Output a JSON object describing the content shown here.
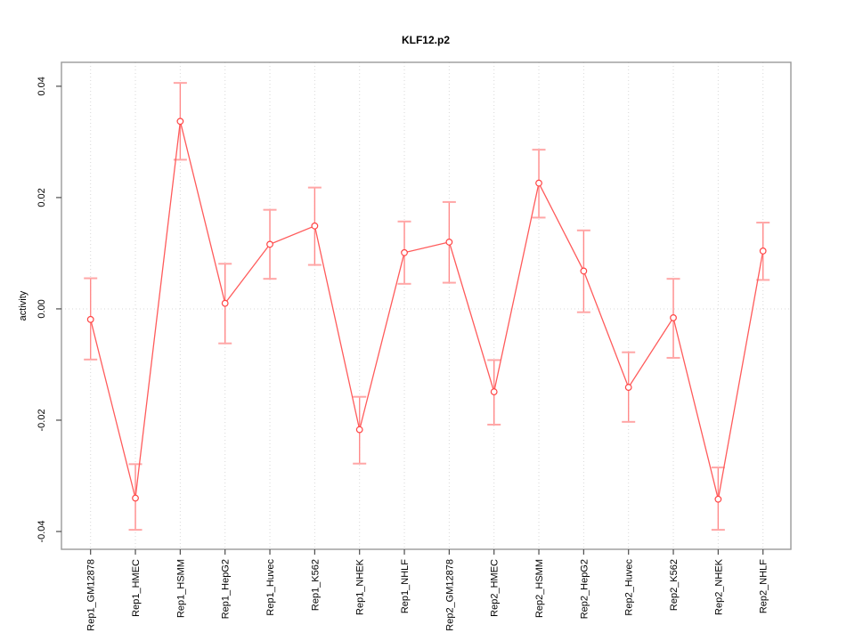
{
  "title": "KLF12.p2",
  "chart_data": {
    "type": "line",
    "title": "KLF12.p2",
    "xlabel": "",
    "ylabel": "activity",
    "categories": [
      "Rep1_GM12878",
      "Rep1_HMEC",
      "Rep1_HSMM",
      "Rep1_HepG2",
      "Rep1_Huvec",
      "Rep1_K562",
      "Rep1_NHEK",
      "Rep1_NHLF",
      "Rep2_GM12878",
      "Rep2_HMEC",
      "Rep2_HSMM",
      "Rep2_HepG2",
      "Rep2_Huvec",
      "Rep2_K562",
      "Rep2_NHEK",
      "Rep2_NHLF"
    ],
    "series": [
      {
        "name": "activity",
        "values": [
          -0.0019,
          -0.034,
          0.0337,
          0.001,
          0.0116,
          0.0149,
          -0.0217,
          0.0101,
          0.012,
          -0.0149,
          0.0226,
          0.0068,
          -0.0141,
          -0.0016,
          -0.0342,
          0.0104
        ],
        "lower": [
          -0.0091,
          -0.0397,
          0.0268,
          -0.0062,
          0.0054,
          0.0079,
          -0.0278,
          0.0045,
          0.0047,
          -0.0208,
          0.0164,
          -0.0006,
          -0.0203,
          -0.0088,
          -0.0397,
          0.0052
        ],
        "upper": [
          0.0055,
          -0.0279,
          0.0406,
          0.0081,
          0.0178,
          0.0218,
          -0.0158,
          0.0157,
          0.0192,
          -0.0092,
          0.0286,
          0.0141,
          -0.0078,
          0.0054,
          -0.0285,
          0.0155
        ]
      }
    ],
    "ylim": [
      -0.0432,
      0.0443
    ],
    "yticks": [
      -0.04,
      -0.02,
      0,
      0.02,
      0.04
    ],
    "ytick_labels": [
      "-0.04",
      "-0.02",
      "0.00",
      "0.02",
      "0.04"
    ],
    "grid": {
      "vertical_per_category": true,
      "horizontal_at_zero": true,
      "style": "dotted"
    },
    "legend_position": "none",
    "colors": {
      "line": "#ff5b5b",
      "point_stroke": "#ff4545",
      "point_fill": "#ffffff",
      "error_bar": "#ff8a8a",
      "error_cap": "#ffa6a6",
      "gridline": "#d8d8d8",
      "box": "#9a9a9a",
      "tick": "#4d4d4d",
      "text": "#000000",
      "background": "#ffffff"
    }
  }
}
